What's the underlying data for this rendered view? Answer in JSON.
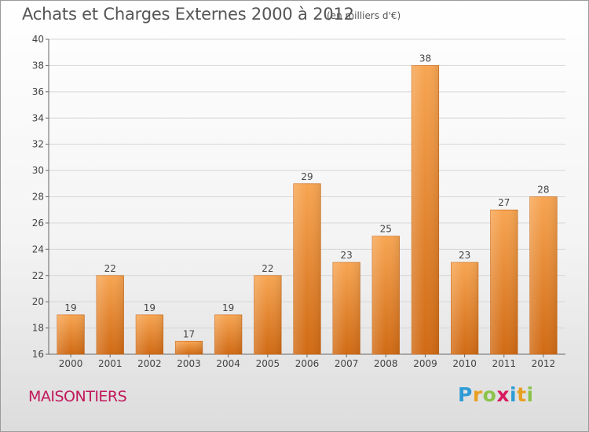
{
  "header": {
    "title": "Achats et Charges Externes 2000 à 2012",
    "subtitle": "(en milliers d'€)"
  },
  "footer": {
    "commune": "MAISONTIERS",
    "logo_letters": [
      "P",
      "r",
      "o",
      "x",
      "i",
      "t",
      "i"
    ],
    "logo_colors": [
      "#2e9bd6",
      "#e8a020",
      "#8bc34a",
      "#d81b60",
      "#2e9bd6",
      "#e8a020",
      "#8bc34a"
    ]
  },
  "chart_data": {
    "type": "bar",
    "title": "Achats et Charges Externes 2000 à 2012",
    "subtitle": "(en milliers d'€)",
    "categories": [
      "2000",
      "2001",
      "2002",
      "2003",
      "2004",
      "2005",
      "2006",
      "2007",
      "2008",
      "2009",
      "2010",
      "2011",
      "2012"
    ],
    "values": [
      19,
      22,
      19,
      17,
      19,
      22,
      29,
      23,
      25,
      38,
      23,
      27,
      28
    ],
    "ylim": [
      16,
      40
    ],
    "yticks": [
      16,
      18,
      20,
      22,
      24,
      26,
      28,
      30,
      32,
      34,
      36,
      38,
      40
    ],
    "grid": true,
    "bar_color_top": "#f7a552",
    "bar_color_bottom": "#d06a14",
    "xlabel": "",
    "ylabel": ""
  }
}
